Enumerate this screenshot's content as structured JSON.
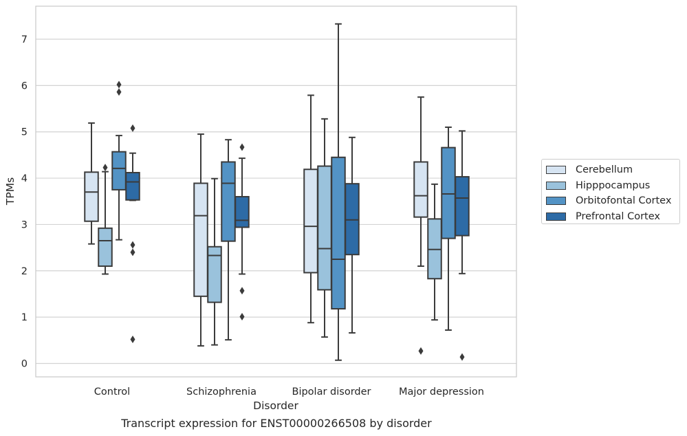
{
  "chart_data": {
    "type": "box",
    "xlabel": "Disorder",
    "ylabel": "TPMs",
    "caption": "Transcript expression for ENST00000266508 by disorder",
    "ylim": [
      -0.3,
      7.7
    ],
    "yticks": [
      0,
      1,
      2,
      3,
      4,
      5,
      6,
      7
    ],
    "grid": "horizontal",
    "legend_position": "right",
    "categories": [
      "Control",
      "Schizophrenia",
      "Bipolar disorder",
      "Major depression"
    ],
    "series": [
      {
        "name": "Cerebellum",
        "color": "#d6e4f2",
        "boxes": [
          {
            "whisker_low": 2.58,
            "q1": 3.07,
            "median": 3.7,
            "q3": 4.13,
            "whisker_high": 5.19,
            "outliers": []
          },
          {
            "whisker_low": 0.38,
            "q1": 1.45,
            "median": 3.19,
            "q3": 3.89,
            "whisker_high": 4.95,
            "outliers": []
          },
          {
            "whisker_low": 0.88,
            "q1": 1.96,
            "median": 2.96,
            "q3": 4.19,
            "whisker_high": 5.79,
            "outliers": []
          },
          {
            "whisker_low": 2.1,
            "q1": 3.16,
            "median": 3.62,
            "q3": 4.35,
            "whisker_high": 5.75,
            "outliers": [
              0.27
            ]
          }
        ]
      },
      {
        "name": "Hipppocampus",
        "color": "#9ac2dc",
        "boxes": [
          {
            "whisker_low": 1.93,
            "q1": 2.1,
            "median": 2.65,
            "q3": 2.92,
            "whisker_high": 4.14,
            "outliers": [
              4.23
            ]
          },
          {
            "whisker_low": 0.4,
            "q1": 1.32,
            "median": 2.33,
            "q3": 2.52,
            "whisker_high": 3.99,
            "outliers": []
          },
          {
            "whisker_low": 0.57,
            "q1": 1.59,
            "median": 2.48,
            "q3": 4.26,
            "whisker_high": 5.28,
            "outliers": []
          },
          {
            "whisker_low": 0.94,
            "q1": 1.83,
            "median": 2.46,
            "q3": 3.12,
            "whisker_high": 3.87,
            "outliers": []
          }
        ]
      },
      {
        "name": "Orbitofontal Cortex",
        "color": "#5393c5",
        "boxes": [
          {
            "whisker_low": 2.67,
            "q1": 3.75,
            "median": 4.21,
            "q3": 4.57,
            "whisker_high": 4.92,
            "outliers": [
              5.86,
              6.02
            ]
          },
          {
            "whisker_low": 0.51,
            "q1": 2.64,
            "median": 3.89,
            "q3": 4.35,
            "whisker_high": 4.83,
            "outliers": []
          },
          {
            "whisker_low": 0.07,
            "q1": 1.18,
            "median": 2.25,
            "q3": 4.45,
            "whisker_high": 7.33,
            "outliers": []
          },
          {
            "whisker_low": 0.72,
            "q1": 2.7,
            "median": 3.66,
            "q3": 4.66,
            "whisker_high": 5.1,
            "outliers": []
          }
        ]
      },
      {
        "name": "Prefrontal Cortex",
        "color": "#2d6ba6",
        "boxes": [
          {
            "whisker_low": 3.52,
            "q1": 3.53,
            "median": 3.92,
            "q3": 4.12,
            "whisker_high": 4.54,
            "outliers": [
              5.08,
              2.56,
              2.4,
              0.52
            ]
          },
          {
            "whisker_low": 1.93,
            "q1": 2.94,
            "median": 3.09,
            "q3": 3.6,
            "whisker_high": 4.43,
            "outliers": [
              4.67,
              1.57,
              1.01
            ]
          },
          {
            "whisker_low": 0.66,
            "q1": 2.35,
            "median": 3.1,
            "q3": 3.88,
            "whisker_high": 4.88,
            "outliers": []
          },
          {
            "whisker_low": 1.94,
            "q1": 2.76,
            "median": 3.57,
            "q3": 4.03,
            "whisker_high": 5.02,
            "outliers": [
              0.14
            ]
          }
        ]
      }
    ]
  }
}
